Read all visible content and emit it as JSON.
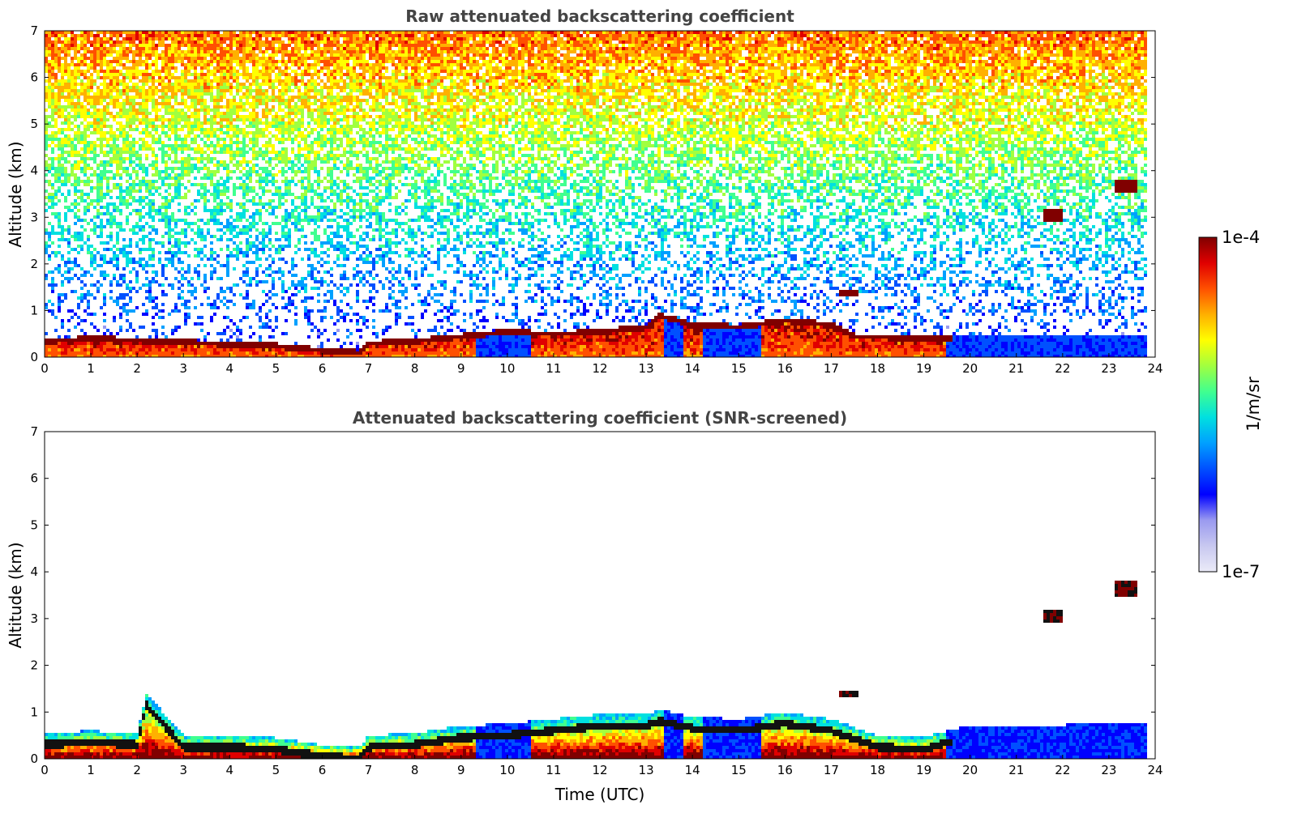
{
  "chart_data": [
    {
      "type": "heatmap",
      "title": "Raw attenuated backscattering coefficient",
      "xlabel": "",
      "ylabel": "Altitude (km)",
      "xlim": [
        0,
        24
      ],
      "ylim": [
        0,
        7
      ],
      "x_ticks": [
        "0",
        "1",
        "2",
        "3",
        "4",
        "5",
        "6",
        "7",
        "8",
        "9",
        "10",
        "11",
        "12",
        "13",
        "14",
        "15",
        "16",
        "17",
        "18",
        "19",
        "20",
        "21",
        "22",
        "23",
        "24"
      ],
      "y_ticks": [
        "0",
        "1",
        "2",
        "3",
        "4",
        "5",
        "6",
        "7"
      ],
      "color_scale": "log",
      "boundary_layer_top_km": [
        [
          0,
          0.4
        ],
        [
          1,
          0.45
        ],
        [
          2,
          0.42
        ],
        [
          3,
          0.38
        ],
        [
          4,
          0.33
        ],
        [
          5,
          0.3
        ],
        [
          6,
          0.2
        ],
        [
          6.8,
          0.15
        ],
        [
          7,
          0.35
        ],
        [
          8,
          0.4
        ],
        [
          9,
          0.5
        ],
        [
          10,
          0.6
        ],
        [
          11,
          0.55
        ],
        [
          12,
          0.6
        ],
        [
          13,
          0.7
        ],
        [
          13.3,
          0.95
        ],
        [
          14,
          0.75
        ],
        [
          15,
          0.7
        ],
        [
          16,
          0.85
        ],
        [
          17,
          0.75
        ],
        [
          17.5,
          0.5
        ],
        [
          18,
          0.5
        ],
        [
          19,
          0.45
        ],
        [
          19.5,
          0.45
        ]
      ],
      "cloud_features": [
        {
          "x": [
            21.6,
            22.0
          ],
          "y": [
            2.9,
            3.2
          ]
        },
        {
          "x": [
            23.1,
            23.6
          ],
          "y": [
            3.5,
            3.8
          ]
        },
        {
          "x": [
            17.2,
            17.6
          ],
          "y": [
            1.3,
            1.45
          ]
        }
      ]
    },
    {
      "type": "heatmap",
      "title": "Attenuated backscattering coefficient (SNR-screened)",
      "xlabel": "Time (UTC)",
      "ylabel": "Altitude (km)",
      "xlim": [
        0,
        24
      ],
      "ylim": [
        0,
        7
      ],
      "x_ticks": [
        "0",
        "1",
        "2",
        "3",
        "4",
        "5",
        "6",
        "7",
        "8",
        "9",
        "10",
        "11",
        "12",
        "13",
        "14",
        "15",
        "16",
        "17",
        "18",
        "19",
        "20",
        "21",
        "22",
        "23",
        "24"
      ],
      "y_ticks": [
        "0",
        "1",
        "2",
        "3",
        "4",
        "5",
        "6",
        "7"
      ],
      "color_scale": "log",
      "boundary_layer_top_km": [
        [
          0,
          0.55
        ],
        [
          1,
          0.6
        ],
        [
          2,
          0.55
        ],
        [
          2.2,
          1.4
        ],
        [
          3,
          0.5
        ],
        [
          4,
          0.5
        ],
        [
          5,
          0.45
        ],
        [
          6,
          0.3
        ],
        [
          6.8,
          0.25
        ],
        [
          7,
          0.5
        ],
        [
          8,
          0.55
        ],
        [
          9,
          0.7
        ],
        [
          10,
          0.75
        ],
        [
          11,
          0.85
        ],
        [
          12,
          0.95
        ],
        [
          13,
          0.95
        ],
        [
          13.3,
          1.05
        ],
        [
          14,
          0.9
        ],
        [
          15,
          0.85
        ],
        [
          16,
          1.0
        ],
        [
          17,
          0.85
        ],
        [
          18,
          0.5
        ],
        [
          19,
          0.45
        ],
        [
          19.5,
          0.6
        ],
        [
          20,
          0.7
        ],
        [
          23.8,
          0.75
        ]
      ],
      "cloud_features": [
        {
          "x": [
            21.6,
            22.0
          ],
          "y": [
            2.9,
            3.2
          ]
        },
        {
          "x": [
            23.1,
            23.6
          ],
          "y": [
            3.5,
            3.8
          ]
        },
        {
          "x": [
            17.2,
            17.6
          ],
          "y": [
            1.3,
            1.45
          ]
        }
      ]
    }
  ],
  "colorbar": {
    "label": "1/m/sr",
    "max_label": "1e-4",
    "min_label": "1e-7",
    "colors": [
      "#ebebf8",
      "#c8c8f0",
      "#9a9af0",
      "#0000ff",
      "#0050ff",
      "#00a0ff",
      "#00e0e0",
      "#40ff90",
      "#a0ff40",
      "#ffff00",
      "#ffb000",
      "#ff5000",
      "#e00000",
      "#800000"
    ]
  }
}
